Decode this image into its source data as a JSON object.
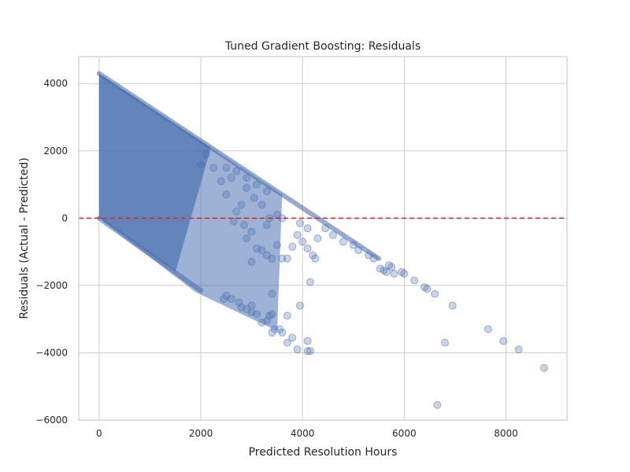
{
  "chart_data": {
    "type": "scatter",
    "title": "Tuned Gradient Boosting: Residuals",
    "xlabel": "Predicted Resolution Hours",
    "ylabel": "Residuals (Actual - Predicted)",
    "xlim": [
      -400,
      9200
    ],
    "ylim": [
      -6000,
      4800
    ],
    "xticks": [
      0,
      2000,
      4000,
      6000,
      8000
    ],
    "yticks": [
      -6000,
      -4000,
      -2000,
      0,
      2000,
      4000
    ],
    "xtick_labels": [
      "0",
      "2000",
      "4000",
      "6000",
      "8000"
    ],
    "ytick_labels": [
      "−6000",
      "−4000",
      "−2000",
      "0",
      "2000",
      "4000"
    ],
    "grid": true,
    "reference_line": {
      "y": 0,
      "style": "dashed",
      "color": "#d62728"
    },
    "point_color": "#4c72b0",
    "point_alpha": 0.3,
    "points": [
      [
        5530,
        -1500
      ],
      [
        5600,
        -1550
      ],
      [
        5650,
        -1600
      ],
      [
        5700,
        -1400
      ],
      [
        5750,
        -1450
      ],
      [
        5800,
        -1650
      ],
      [
        5950,
        -1600
      ],
      [
        6000,
        -1650
      ],
      [
        6200,
        -1850
      ],
      [
        6400,
        -2050
      ],
      [
        6450,
        -2100
      ],
      [
        6600,
        -2250
      ],
      [
        6800,
        -3700
      ],
      [
        6950,
        -2600
      ],
      [
        7650,
        -3300
      ],
      [
        7950,
        -3650
      ],
      [
        8250,
        -3900
      ],
      [
        8750,
        -4450
      ],
      [
        6650,
        -5550
      ],
      [
        3900,
        -3900
      ],
      [
        4100,
        -3950
      ],
      [
        4150,
        -3950
      ],
      [
        4100,
        -3650
      ],
      [
        3950,
        -2600
      ],
      [
        4150,
        -1900
      ],
      [
        3700,
        -3700
      ],
      [
        3800,
        -3550
      ],
      [
        3600,
        -3400
      ],
      [
        3550,
        -3300
      ],
      [
        3400,
        -3400
      ],
      [
        3450,
        -3300
      ],
      [
        3350,
        -2900
      ],
      [
        3400,
        -2850
      ],
      [
        3300,
        -3050
      ],
      [
        3200,
        -3100
      ],
      [
        3100,
        -2850
      ],
      [
        3000,
        -2800
      ],
      [
        3000,
        -2600
      ],
      [
        2900,
        -2700
      ],
      [
        2800,
        -2650
      ],
      [
        2750,
        -2500
      ],
      [
        2600,
        -2400
      ],
      [
        2500,
        -2300
      ],
      [
        2450,
        -2400
      ],
      [
        3400,
        -2250
      ],
      [
        3700,
        -2900
      ],
      [
        3000,
        -1300
      ],
      [
        3100,
        -900
      ],
      [
        3200,
        -950
      ],
      [
        3300,
        -1100
      ],
      [
        3400,
        -1200
      ],
      [
        3500,
        -800
      ],
      [
        3600,
        -1200
      ],
      [
        3700,
        -1200
      ],
      [
        3800,
        -850
      ],
      [
        3900,
        -500
      ],
      [
        4000,
        -700
      ],
      [
        4100,
        -900
      ],
      [
        4200,
        -1100
      ],
      [
        4250,
        -1200
      ],
      [
        4300,
        -600
      ],
      [
        4100,
        -300
      ],
      [
        3950,
        -150
      ],
      [
        4450,
        -300
      ],
      [
        4600,
        -500
      ],
      [
        4800,
        -700
      ],
      [
        5000,
        -800
      ],
      [
        5100,
        -950
      ],
      [
        5300,
        -1100
      ],
      [
        5400,
        -1200
      ],
      [
        3500,
        100
      ],
      [
        3300,
        -200
      ],
      [
        3350,
        0
      ],
      [
        3600,
        0
      ],
      [
        3000,
        -400
      ],
      [
        2900,
        -600
      ],
      [
        2850,
        -200
      ],
      [
        2700,
        200
      ],
      [
        2650,
        -100
      ],
      [
        2800,
        400
      ],
      [
        3200,
        400
      ],
      [
        3050,
        600
      ],
      [
        2900,
        900
      ],
      [
        2500,
        700
      ],
      [
        2400,
        1100
      ],
      [
        2600,
        1200
      ],
      [
        2900,
        1200
      ],
      [
        3100,
        1000
      ],
      [
        3300,
        800
      ],
      [
        2000,
        1600
      ],
      [
        2100,
        1900
      ],
      [
        2250,
        1500
      ],
      [
        2500,
        1500
      ],
      [
        2700,
        1400
      ]
    ]
  }
}
